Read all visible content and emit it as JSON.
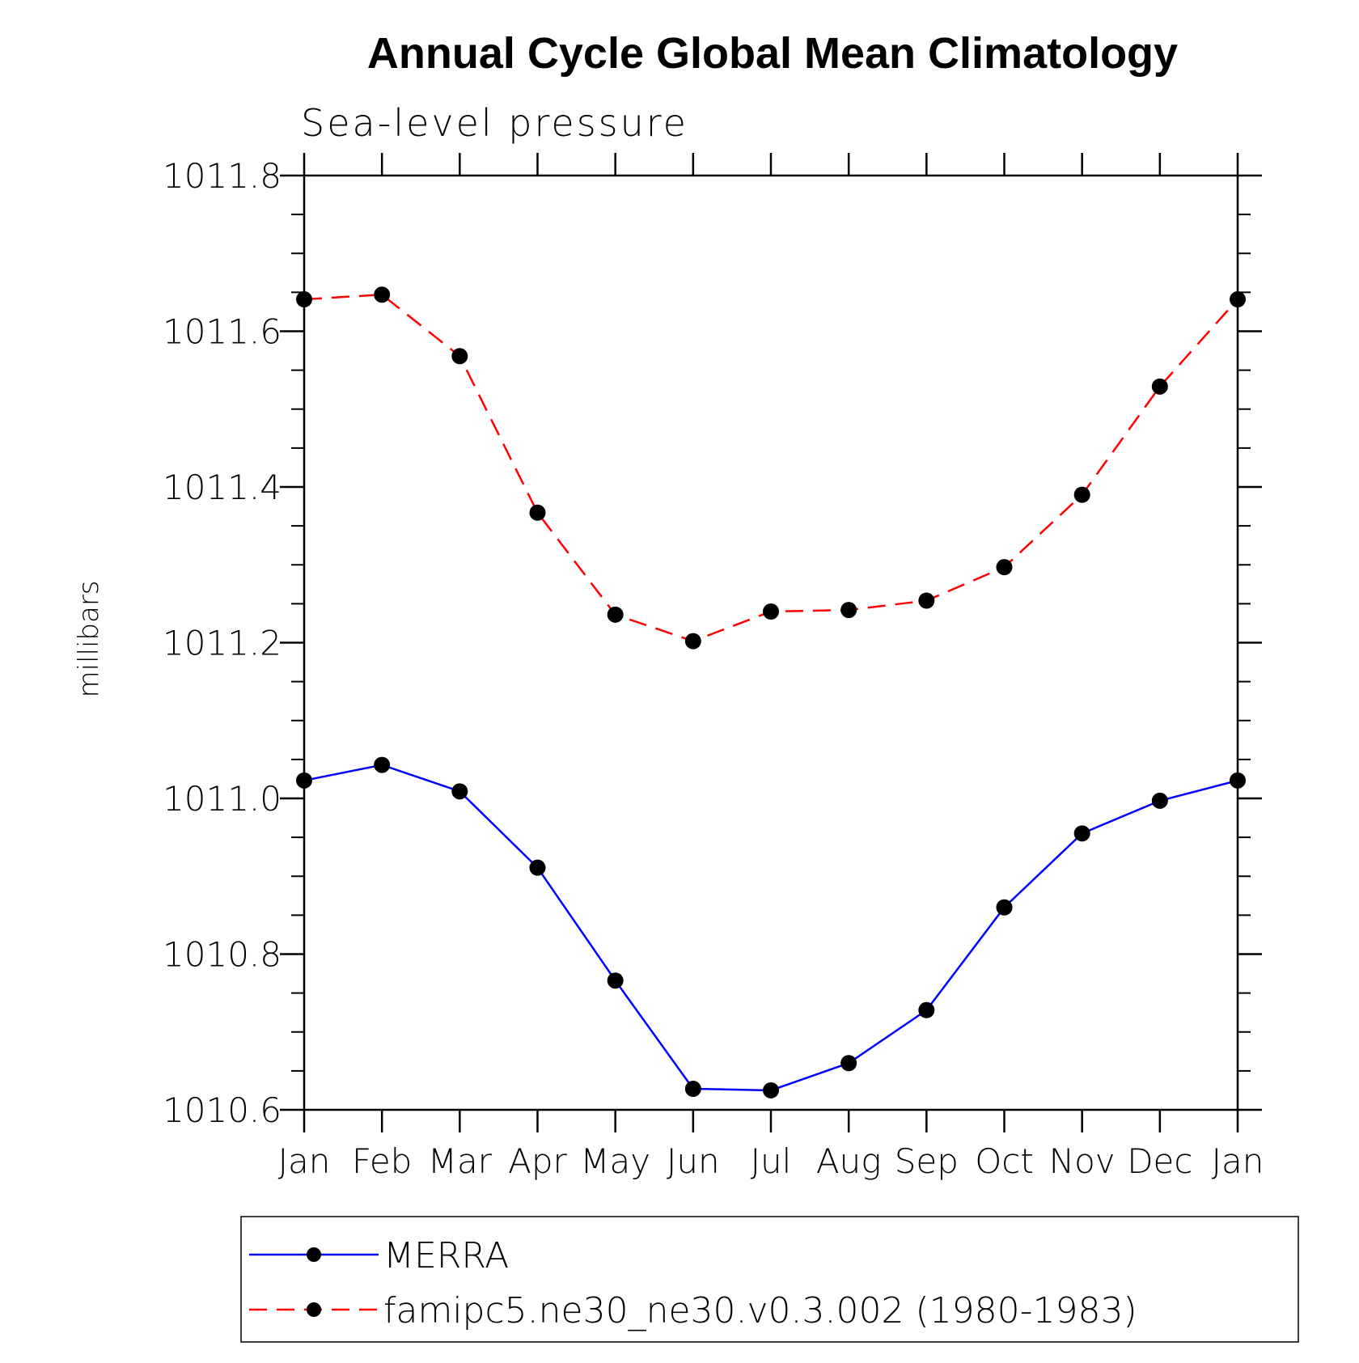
{
  "chart_data": {
    "type": "line",
    "title": "Annual Cycle Global Mean Climatology",
    "subtitle": "Sea-level pressure",
    "ylabel": "millibars",
    "xlabel": "",
    "categories": [
      "Jan",
      "Feb",
      "Mar",
      "Apr",
      "May",
      "Jun",
      "Jul",
      "Aug",
      "Sep",
      "Oct",
      "Nov",
      "Dec",
      "Jan"
    ],
    "ylim": [
      1010.6,
      1011.8
    ],
    "yticks": [
      "1010.6",
      "1010.8",
      "1011.0",
      "1011.2",
      "1011.4",
      "1011.6",
      "1011.8"
    ],
    "grid": false,
    "legend_position": "bottom",
    "series": [
      {
        "name": "MERRA",
        "color": "#0000ff",
        "line_style": "solid",
        "marker": "filled-circle",
        "values": [
          1011.023,
          1011.043,
          1011.009,
          1010.911,
          1010.766,
          1010.627,
          1010.625,
          1010.66,
          1010.728,
          1010.86,
          1010.955,
          1010.997,
          1011.023
        ]
      },
      {
        "name": "famipc5.ne30_ne30.v0.3.002 (1980-1983)",
        "color": "#ff0000",
        "line_style": "dashed",
        "marker": "filled-circle",
        "values": [
          1011.641,
          1011.647,
          1011.568,
          1011.367,
          1011.236,
          1011.202,
          1011.24,
          1011.242,
          1011.254,
          1011.297,
          1011.39,
          1011.529,
          1011.641
        ]
      }
    ]
  }
}
